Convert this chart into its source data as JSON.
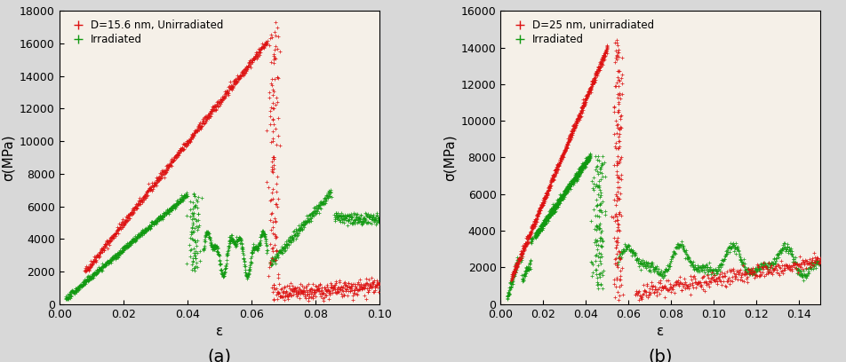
{
  "fig_width": 9.52,
  "fig_height": 4.08,
  "dpi": 100,
  "background_color": "#d8d8d8",
  "plot_background": "#f5f0e8",
  "subplot_a": {
    "legend_line1": "D=15.6 nm, Unirradiated",
    "legend_line2": "Irradiated",
    "xlabel": "ε",
    "ylabel": "σ(MPa)",
    "xlim": [
      0,
      0.1
    ],
    "ylim": [
      0,
      18000
    ],
    "xticks": [
      0,
      0.02,
      0.04,
      0.06,
      0.08,
      0.1
    ],
    "yticks": [
      0,
      2000,
      4000,
      6000,
      8000,
      10000,
      12000,
      14000,
      16000,
      18000
    ],
    "label": "(a)",
    "unirradiated_color": "#dd1111",
    "irradiated_color": "#119911"
  },
  "subplot_b": {
    "legend_line1": "D=25 nm, unirradiated",
    "legend_line2": "Irradiated",
    "xlabel": "ε",
    "ylabel": "σ(MPa)",
    "xlim": [
      0,
      0.15
    ],
    "ylim": [
      0,
      16000
    ],
    "xticks": [
      0,
      0.02,
      0.04,
      0.06,
      0.08,
      0.1,
      0.12,
      0.14
    ],
    "yticks": [
      0,
      2000,
      4000,
      6000,
      8000,
      10000,
      12000,
      14000,
      16000
    ],
    "label": "(b)",
    "unirradiated_color": "#dd1111",
    "irradiated_color": "#119911"
  }
}
